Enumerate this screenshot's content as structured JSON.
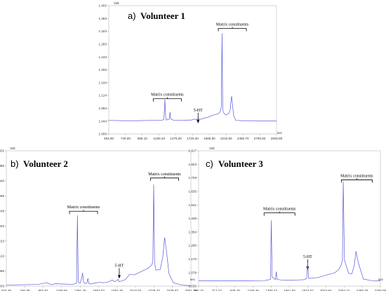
{
  "chart_data": [
    {
      "type": "line",
      "panel_letter": "a)",
      "title": "Volunteer 1",
      "y_unit": "Volt",
      "x_unit": "sec",
      "ylim": [
        1.004,
        1.402
      ],
      "xlim": [
        494.9,
        2945.8
      ],
      "y_ticks": [
        "1.004",
        "1.044",
        "1.084",
        "1.124",
        "1.164",
        "1.204",
        "1.243",
        "1.283",
        "1.323",
        "1.363",
        "1.402"
      ],
      "x_ticks": [
        "494.90",
        "740.00",
        "985.10",
        "1230.20",
        "1475.30",
        "1720.40",
        "1965.50",
        "2210.60",
        "2455.70",
        "2700.80",
        "2945.80"
      ],
      "annotations": [
        {
          "text": "Matrix constituents",
          "x": 1350,
          "y": 1.122
        },
        {
          "text": "5-HT",
          "x": 1800,
          "y": 1.074
        },
        {
          "text": "Matrix constituents",
          "x": 2300,
          "y": 1.34
        }
      ],
      "series": [
        {
          "color": "#5a5adc",
          "x": [
            494.9,
            700,
            900,
            1100,
            1250,
            1300,
            1315,
            1325,
            1335,
            1380,
            1390,
            1400,
            1450,
            1550,
            1650,
            1700,
            1750,
            1780,
            1800,
            1820,
            1850,
            1900,
            1950,
            2000,
            2050,
            2080,
            2110,
            2130,
            2140,
            2150,
            2160,
            2170,
            2190,
            2210,
            2250,
            2270,
            2280,
            2290,
            2300,
            2320,
            2350,
            2450,
            2600,
            2800,
            2945.8
          ],
          "y": [
            1.046,
            1.045,
            1.045,
            1.046,
            1.046,
            1.048,
            1.11,
            1.06,
            1.047,
            1.05,
            1.072,
            1.05,
            1.046,
            1.046,
            1.047,
            1.047,
            1.05,
            1.048,
            1.053,
            1.049,
            1.05,
            1.054,
            1.056,
            1.061,
            1.064,
            1.066,
            1.069,
            1.077,
            1.09,
            1.316,
            1.08,
            1.071,
            1.065,
            1.063,
            1.068,
            1.08,
            1.105,
            1.121,
            1.1,
            1.06,
            1.046,
            1.045,
            1.045,
            1.044,
            1.044
          ]
        }
      ]
    },
    {
      "type": "line",
      "panel_letter": "b)",
      "title": "Volunteer 2",
      "y_unit": "Volt",
      "x_unit": "sec",
      "ylim": [
        1.033,
        1.432
      ],
      "xlim": [
        534.36,
        2651.7
      ],
      "y_ticks": [
        "1.033",
        "1.066",
        "1.112",
        "1.153",
        "1.203",
        "1.249",
        "1.295",
        "1.340",
        "1.386",
        "1.432"
      ],
      "x_ticks": [
        "534.36",
        "746.09",
        "957.82",
        "1169.55",
        "1381.29",
        "1593.03",
        "1804.76",
        "2016.50",
        "2228.23",
        "2439.97",
        "2651.70"
      ],
      "annotations": [
        {
          "text": "Matrix constituents",
          "x": 1420,
          "y": 1.262
        },
        {
          "text": "5-HT",
          "x": 1830,
          "y": 1.09
        },
        {
          "text": "Matrix constituents",
          "x": 2350,
          "y": 1.36
        }
      ],
      "series": [
        {
          "color": "#5a5adc",
          "x": [
            534.36,
            700,
            900,
            1000,
            1050,
            1100,
            1200,
            1300,
            1340,
            1350,
            1360,
            1380,
            1400,
            1410,
            1420,
            1440,
            1460,
            1470,
            1480,
            1500,
            1550,
            1600,
            1650,
            1700,
            1750,
            1780,
            1800,
            1815,
            1830,
            1900,
            1950,
            2000,
            2050,
            2100,
            2150,
            2200,
            2215,
            2225,
            2235,
            2250,
            2300,
            2330,
            2350,
            2370,
            2400,
            2450,
            2550,
            2651.7
          ],
          "y": [
            1.036,
            1.037,
            1.038,
            1.043,
            1.037,
            1.04,
            1.039,
            1.038,
            1.042,
            1.241,
            1.045,
            1.041,
            1.058,
            1.072,
            1.044,
            1.04,
            1.043,
            1.056,
            1.041,
            1.039,
            1.042,
            1.044,
            1.043,
            1.045,
            1.051,
            1.046,
            1.049,
            1.053,
            1.046,
            1.052,
            1.068,
            1.066,
            1.072,
            1.078,
            1.084,
            1.094,
            1.104,
            1.332,
            1.104,
            1.08,
            1.082,
            1.12,
            1.176,
            1.14,
            1.07,
            1.043,
            1.036,
            1.034
          ]
        }
      ]
    },
    {
      "type": "line",
      "panel_letter": "c)",
      "title": "Volunteer 3",
      "y_unit": "Volt",
      "x_unit": "sec",
      "ylim": [
        1.03,
        1.917
      ],
      "xlim": [
        496.15,
        2706.85
      ],
      "y_ticks": [
        "1.030",
        "1.078",
        "1.170",
        "1.260",
        "1.354",
        "1.448",
        "1.541",
        "1.635",
        "1.729",
        "1.823",
        "1.917"
      ],
      "x_ticks": [
        "496.15",
        "717.22",
        "938.29",
        "1159.36",
        "1380.43",
        "1601.50",
        "1822.57",
        "2043.64",
        "2264.71",
        "2485.78",
        "2706.85"
      ],
      "annotations": [
        {
          "text": "Matrix constituents",
          "x": 1480,
          "y": 1.528
        },
        {
          "text": "5-HT",
          "x": 1822,
          "y": 1.214
        },
        {
          "text": "Matrix constituents",
          "x": 2420,
          "y": 1.745
        }
      ],
      "series": [
        {
          "color": "#5a5adc",
          "x": [
            496.15,
            700,
            900,
            1100,
            1300,
            1370,
            1380,
            1390,
            1430,
            1440,
            1450,
            1500,
            1600,
            1700,
            1780,
            1810,
            1822,
            1835,
            1870,
            1950,
            2000,
            2100,
            2150,
            2200,
            2230,
            2245,
            2255,
            2270,
            2320,
            2360,
            2390,
            2410,
            2440,
            2500,
            2600,
            2706.85
          ],
          "y": [
            1.064,
            1.064,
            1.064,
            1.065,
            1.066,
            1.074,
            1.46,
            1.09,
            1.072,
            1.124,
            1.074,
            1.07,
            1.068,
            1.07,
            1.072,
            1.08,
            1.182,
            1.08,
            1.082,
            1.086,
            1.094,
            1.11,
            1.116,
            1.138,
            1.168,
            1.2,
            1.716,
            1.2,
            1.114,
            1.11,
            1.168,
            1.258,
            1.18,
            1.076,
            1.066,
            1.064
          ]
        }
      ]
    }
  ]
}
